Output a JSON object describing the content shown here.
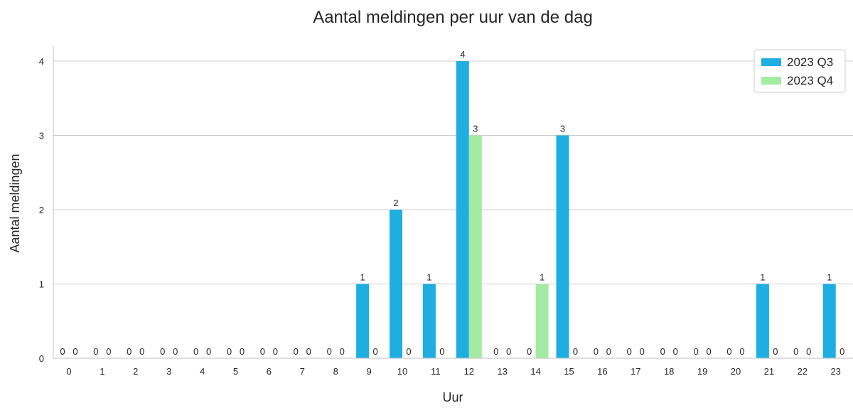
{
  "chart_data": {
    "type": "bar",
    "title": "Aantal meldingen per uur van de dag",
    "xlabel": "Uur",
    "ylabel": "Aantal meldingen",
    "categories": [
      "0",
      "1",
      "2",
      "3",
      "4",
      "5",
      "6",
      "7",
      "8",
      "9",
      "10",
      "11",
      "12",
      "13",
      "14",
      "15",
      "16",
      "17",
      "18",
      "19",
      "20",
      "21",
      "22",
      "23"
    ],
    "series": [
      {
        "name": "2023 Q3",
        "color": "#1eaee1",
        "values": [
          0,
          0,
          0,
          0,
          0,
          0,
          0,
          0,
          0,
          1,
          2,
          1,
          4,
          0,
          0,
          3,
          0,
          0,
          0,
          0,
          0,
          1,
          0,
          1
        ]
      },
      {
        "name": "2023 Q4",
        "color": "#a3eba3",
        "values": [
          0,
          0,
          0,
          0,
          0,
          0,
          0,
          0,
          0,
          0,
          0,
          0,
          3,
          0,
          1,
          0,
          0,
          0,
          0,
          0,
          0,
          0,
          0,
          0
        ]
      }
    ],
    "yticks": [
      0,
      1,
      2,
      3,
      4
    ],
    "ylim": [
      0,
      4.2
    ],
    "grid": "horizontal",
    "legend_position": "top-right",
    "data_labels": true
  }
}
